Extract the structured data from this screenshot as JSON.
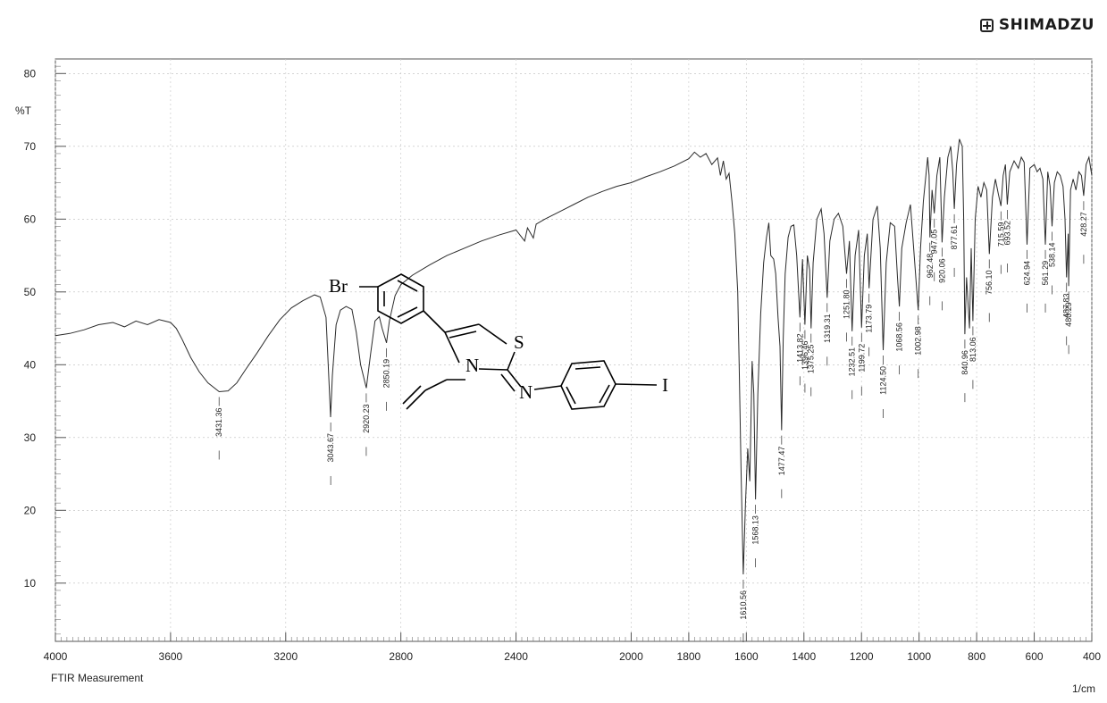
{
  "brand": {
    "name": "SHIMADZU",
    "icon": "plus-box-icon"
  },
  "chart_data": {
    "type": "line",
    "ylabel": "%T",
    "xunit": "1/cm",
    "footer": "FTIR Measurement",
    "xlim": [
      4000,
      400
    ],
    "ylim": [
      2,
      82
    ],
    "x_ticks": [
      4000,
      3600,
      3200,
      2800,
      2400,
      2000,
      1800,
      1600,
      1400,
      1200,
      1000,
      800,
      600,
      400
    ],
    "y_ticks": [
      10,
      20,
      30,
      40,
      50,
      60,
      70,
      80
    ],
    "grid": true,
    "series": [
      {
        "points": [
          [
            4000,
            44.0
          ],
          [
            3950,
            44.3
          ],
          [
            3900,
            44.8
          ],
          [
            3850,
            45.5
          ],
          [
            3800,
            45.8
          ],
          [
            3760,
            45.2
          ],
          [
            3720,
            46.0
          ],
          [
            3680,
            45.5
          ],
          [
            3640,
            46.2
          ],
          [
            3600,
            45.8
          ],
          [
            3580,
            45.0
          ],
          [
            3560,
            43.5
          ],
          [
            3530,
            41.0
          ],
          [
            3500,
            39.0
          ],
          [
            3470,
            37.5
          ],
          [
            3431,
            36.3
          ],
          [
            3400,
            36.4
          ],
          [
            3370,
            37.5
          ],
          [
            3340,
            39.3
          ],
          [
            3300,
            41.6
          ],
          [
            3260,
            44.0
          ],
          [
            3220,
            46.2
          ],
          [
            3180,
            47.8
          ],
          [
            3140,
            48.8
          ],
          [
            3100,
            49.6
          ],
          [
            3080,
            49.3
          ],
          [
            3060,
            46.5
          ],
          [
            3050,
            38.0
          ],
          [
            3044,
            32.8
          ],
          [
            3038,
            38.5
          ],
          [
            3025,
            45.5
          ],
          [
            3010,
            47.5
          ],
          [
            2990,
            48.0
          ],
          [
            2970,
            47.6
          ],
          [
            2955,
            44.5
          ],
          [
            2940,
            40.0
          ],
          [
            2920,
            36.8
          ],
          [
            2905,
            41.5
          ],
          [
            2890,
            46.0
          ],
          [
            2875,
            46.6
          ],
          [
            2865,
            45.0
          ],
          [
            2850,
            43.0
          ],
          [
            2840,
            46.0
          ],
          [
            2820,
            49.5
          ],
          [
            2800,
            51.0
          ],
          [
            2760,
            52.3
          ],
          [
            2700,
            53.7
          ],
          [
            2640,
            55.0
          ],
          [
            2580,
            56.0
          ],
          [
            2520,
            57.0
          ],
          [
            2460,
            57.8
          ],
          [
            2400,
            58.5
          ],
          [
            2370,
            57.0
          ],
          [
            2360,
            58.8
          ],
          [
            2340,
            57.4
          ],
          [
            2330,
            59.3
          ],
          [
            2300,
            60.0
          ],
          [
            2250,
            61.0
          ],
          [
            2200,
            62.0
          ],
          [
            2150,
            63.0
          ],
          [
            2100,
            63.8
          ],
          [
            2050,
            64.5
          ],
          [
            2000,
            65.0
          ],
          [
            1950,
            65.8
          ],
          [
            1900,
            66.5
          ],
          [
            1850,
            67.3
          ],
          [
            1800,
            68.3
          ],
          [
            1780,
            69.2
          ],
          [
            1760,
            68.5
          ],
          [
            1740,
            69.0
          ],
          [
            1720,
            67.5
          ],
          [
            1700,
            68.4
          ],
          [
            1690,
            66.0
          ],
          [
            1680,
            68.0
          ],
          [
            1670,
            65.5
          ],
          [
            1660,
            66.3
          ],
          [
            1650,
            62.5
          ],
          [
            1640,
            58.0
          ],
          [
            1630,
            50.0
          ],
          [
            1625,
            40.0
          ],
          [
            1618,
            25.0
          ],
          [
            1610.56,
            11.2
          ],
          [
            1603,
            21.0
          ],
          [
            1595,
            28.5
          ],
          [
            1588,
            24.0
          ],
          [
            1580,
            40.5
          ],
          [
            1574,
            36.0
          ],
          [
            1568.13,
            21.5
          ],
          [
            1560,
            36.0
          ],
          [
            1550,
            47.0
          ],
          [
            1540,
            54.0
          ],
          [
            1530,
            57.5
          ],
          [
            1522,
            59.5
          ],
          [
            1515,
            55.0
          ],
          [
            1505,
            54.5
          ],
          [
            1498,
            52.5
          ],
          [
            1490,
            46.5
          ],
          [
            1483,
            42.5
          ],
          [
            1477.47,
            31.0
          ],
          [
            1472,
            43.5
          ],
          [
            1465,
            52.5
          ],
          [
            1455,
            57.5
          ],
          [
            1445,
            59.0
          ],
          [
            1435,
            59.2
          ],
          [
            1425,
            55.0
          ],
          [
            1413.82,
            46.5
          ],
          [
            1405,
            54.5
          ],
          [
            1396.46,
            45.5
          ],
          [
            1388,
            55.0
          ],
          [
            1380,
            53.0
          ],
          [
            1375.25,
            45.0
          ],
          [
            1368,
            54.0
          ],
          [
            1355,
            60.0
          ],
          [
            1340,
            61.4
          ],
          [
            1330,
            58.0
          ],
          [
            1319.31,
            49.2
          ],
          [
            1310,
            57.0
          ],
          [
            1295,
            60.0
          ],
          [
            1280,
            60.8
          ],
          [
            1265,
            59.0
          ],
          [
            1251.8,
            52.5
          ],
          [
            1242,
            57.0
          ],
          [
            1232.51,
            44.6
          ],
          [
            1222,
            55.0
          ],
          [
            1210,
            58.5
          ],
          [
            1199.72,
            45.1
          ],
          [
            1190,
            55.0
          ],
          [
            1180,
            58.0
          ],
          [
            1173.79,
            50.5
          ],
          [
            1160,
            60.0
          ],
          [
            1145,
            61.8
          ],
          [
            1135,
            56.0
          ],
          [
            1124.5,
            42.0
          ],
          [
            1114,
            54.0
          ],
          [
            1100,
            59.5
          ],
          [
            1085,
            59.0
          ],
          [
            1075,
            52.0
          ],
          [
            1068.56,
            48.0
          ],
          [
            1060,
            56.0
          ],
          [
            1045,
            59.5
          ],
          [
            1030,
            62.0
          ],
          [
            1015,
            54.0
          ],
          [
            1002.98,
            47.5
          ],
          [
            995,
            56.0
          ],
          [
            985,
            62.5
          ],
          [
            970,
            68.5
          ],
          [
            965,
            66.0
          ],
          [
            962.48,
            57.5
          ],
          [
            955,
            64.0
          ],
          [
            947.05,
            60.8
          ],
          [
            938,
            66.0
          ],
          [
            928,
            68.5
          ],
          [
            920.06,
            56.8
          ],
          [
            912,
            63.0
          ],
          [
            900,
            68.5
          ],
          [
            890,
            70.0
          ],
          [
            883,
            66.5
          ],
          [
            877.61,
            61.4
          ],
          [
            870,
            67.5
          ],
          [
            860,
            71.0
          ],
          [
            850,
            70.0
          ],
          [
            845,
            60.0
          ],
          [
            840.96,
            44.2
          ],
          [
            835,
            52.0
          ],
          [
            825,
            45.0
          ],
          [
            819,
            56.0
          ],
          [
            813.06,
            46.0
          ],
          [
            805,
            60.0
          ],
          [
            795,
            64.5
          ],
          [
            785,
            63.0
          ],
          [
            775,
            65.0
          ],
          [
            765,
            64.0
          ],
          [
            756.1,
            55.2
          ],
          [
            745,
            63.0
          ],
          [
            735,
            65.5
          ],
          [
            725,
            63.5
          ],
          [
            715.59,
            61.8
          ],
          [
            708,
            66.0
          ],
          [
            700,
            67.5
          ],
          [
            693.52,
            62.0
          ],
          [
            685,
            66.5
          ],
          [
            670,
            68.0
          ],
          [
            655,
            67.0
          ],
          [
            645,
            68.5
          ],
          [
            635,
            67.8
          ],
          [
            624.94,
            56.5
          ],
          [
            615,
            67.0
          ],
          [
            600,
            67.5
          ],
          [
            590,
            66.5
          ],
          [
            580,
            67.0
          ],
          [
            570,
            65.5
          ],
          [
            561.29,
            56.5
          ],
          [
            553,
            66.5
          ],
          [
            545,
            64.5
          ],
          [
            538.14,
            59.0
          ],
          [
            530,
            65.0
          ],
          [
            520,
            66.5
          ],
          [
            510,
            66.0
          ],
          [
            500,
            64.5
          ],
          [
            493,
            60.0
          ],
          [
            487.83,
            52.0
          ],
          [
            482,
            58.0
          ],
          [
            480.29,
            50.8
          ],
          [
            474,
            64.0
          ],
          [
            465,
            65.5
          ],
          [
            455,
            64.0
          ],
          [
            445,
            66.5
          ],
          [
            436,
            66.0
          ],
          [
            428.27,
            63.2
          ],
          [
            420,
            67.5
          ],
          [
            410,
            68.5
          ],
          [
            400,
            66.0
          ]
        ]
      }
    ],
    "peak_labels": [
      {
        "x": 3431.36,
        "label": "3431.36",
        "y": 36.3
      },
      {
        "x": 3043.67,
        "label": "3043.67",
        "y": 32.8
      },
      {
        "x": 2920.23,
        "label": "2920.23",
        "y": 36.8
      },
      {
        "x": 2850.19,
        "label": "2850.19",
        "y": 43.0
      },
      {
        "x": 1610.56,
        "label": "1610.56",
        "y": 11.2
      },
      {
        "x": 1568.13,
        "label": "1568.13",
        "y": 21.5
      },
      {
        "x": 1477.47,
        "label": "1477.47",
        "y": 31.0
      },
      {
        "x": 1413.82,
        "label": "1413.82",
        "y": 46.5
      },
      {
        "x": 1396.46,
        "label": "1396.46",
        "y": 45.5
      },
      {
        "x": 1375.25,
        "label": "1375.25",
        "y": 45.0
      },
      {
        "x": 1319.31,
        "label": "1319.31",
        "y": 49.2
      },
      {
        "x": 1251.8,
        "label": "1251.80",
        "y": 52.5
      },
      {
        "x": 1232.51,
        "label": "1232.51",
        "y": 44.6
      },
      {
        "x": 1199.72,
        "label": "1199.72",
        "y": 45.1
      },
      {
        "x": 1173.79,
        "label": "1173.79",
        "y": 50.5
      },
      {
        "x": 1124.5,
        "label": "1124.50",
        "y": 42.0
      },
      {
        "x": 1068.56,
        "label": "1068.56",
        "y": 48.0
      },
      {
        "x": 1002.98,
        "label": "1002.98",
        "y": 47.5
      },
      {
        "x": 962.48,
        "label": "962.48",
        "y": 57.5
      },
      {
        "x": 947.05,
        "label": "947.05",
        "y": 60.8
      },
      {
        "x": 920.06,
        "label": "920.06",
        "y": 56.8
      },
      {
        "x": 877.61,
        "label": "877.61",
        "y": 61.4
      },
      {
        "x": 840.96,
        "label": "840.96",
        "y": 44.2
      },
      {
        "x": 813.06,
        "label": "813.06",
        "y": 46.0
      },
      {
        "x": 756.1,
        "label": "756.10",
        "y": 55.2
      },
      {
        "x": 715.59,
        "label": "715.59",
        "y": 61.8
      },
      {
        "x": 693.52,
        "label": "693.52",
        "y": 62.0
      },
      {
        "x": 624.94,
        "label": "624.94",
        "y": 56.5
      },
      {
        "x": 561.29,
        "label": "561.29",
        "y": 56.5
      },
      {
        "x": 538.14,
        "label": "538.14",
        "y": 59.0
      },
      {
        "x": 487.83,
        "label": "487.83",
        "y": 52.0
      },
      {
        "x": 480.29,
        "label": "480.29",
        "y": 50.8
      },
      {
        "x": 428.27,
        "label": "428.27",
        "y": 63.2
      }
    ]
  },
  "structure": {
    "atoms": {
      "br": "Br",
      "s": "S",
      "n_ring": "N",
      "n_imine": "N",
      "iodine": "I"
    }
  }
}
